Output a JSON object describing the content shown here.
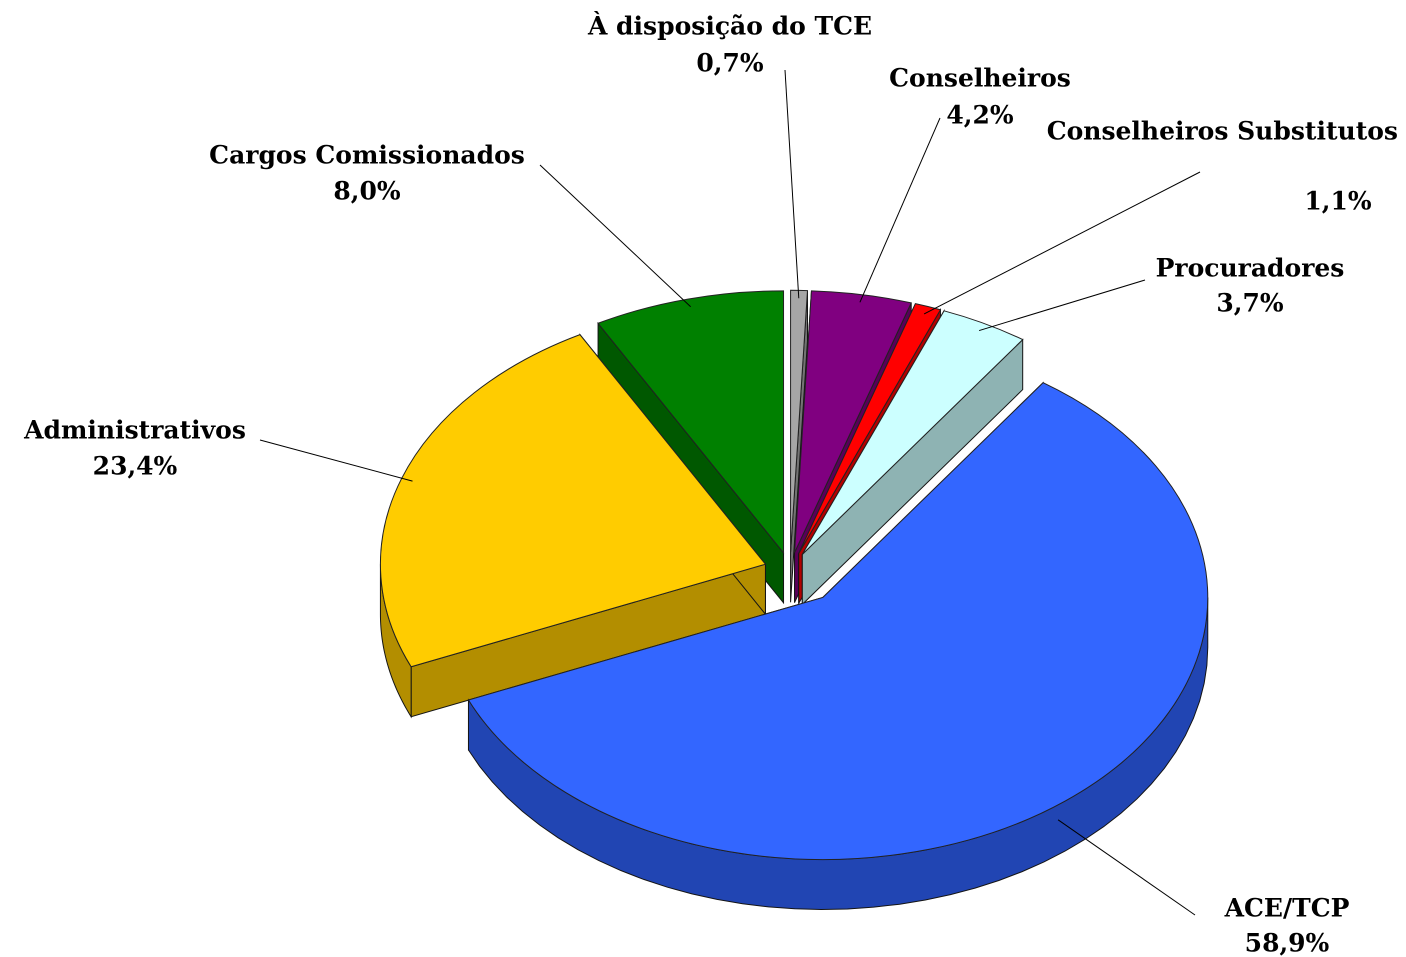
{
  "chart_data": {
    "type": "pie",
    "categories": [
      "À disposição do TCE",
      "Conselheiros",
      "Conselheiros Substitutos",
      "Procuradores",
      "ACE/TCP",
      "Administrativos",
      "Cargos Comissionados"
    ],
    "values": [
      0.7,
      4.2,
      1.1,
      3.7,
      58.9,
      23.4,
      8.0
    ],
    "value_labels": [
      "0,7%",
      "4,2%",
      "1,1%",
      "3,7%",
      "58,9%",
      "23,4%",
      "8,0%"
    ],
    "colors": [
      "#a6a6a6",
      "#800080",
      "#ff0000",
      "#ccffff",
      "#3366ff",
      "#ffcc00",
      "#008000"
    ]
  }
}
